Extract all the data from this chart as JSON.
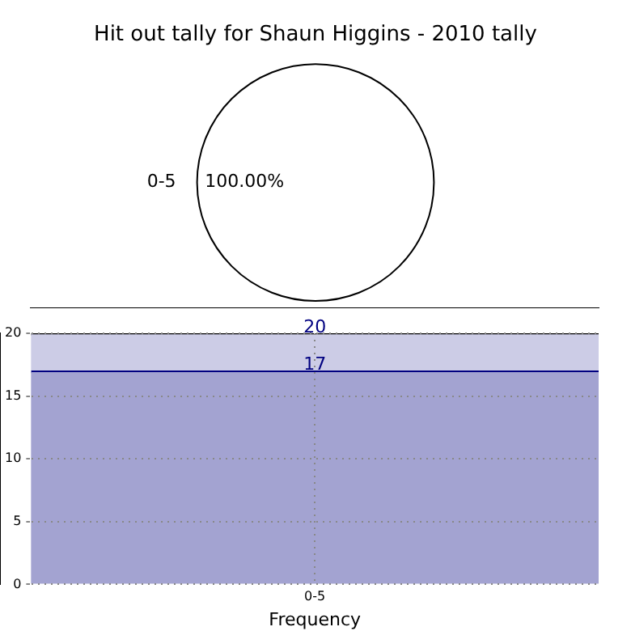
{
  "chart_data": [
    {
      "type": "pie",
      "title": "Hit out tally for Shaun Higgins - 2010 tally",
      "categories": [
        "0-5"
      ],
      "values": [
        100
      ],
      "colors": [
        "#ffffff"
      ],
      "value_labels": [
        "100.00%"
      ],
      "legend": false
    },
    {
      "type": "bar",
      "categories": [
        "0-5"
      ],
      "stacked": true,
      "series": [
        {
          "color": "#a3a3d1",
          "values": [
            17
          ],
          "value_labels": [
            "17"
          ]
        },
        {
          "color": "#ccccE6",
          "values": [
            3
          ]
        }
      ],
      "totals": [
        "20"
      ],
      "ylim": [
        0,
        20
      ],
      "yticks": [
        0,
        5,
        10,
        15,
        20
      ],
      "xlabel": "Frequency",
      "grid": true,
      "legend": false
    }
  ]
}
